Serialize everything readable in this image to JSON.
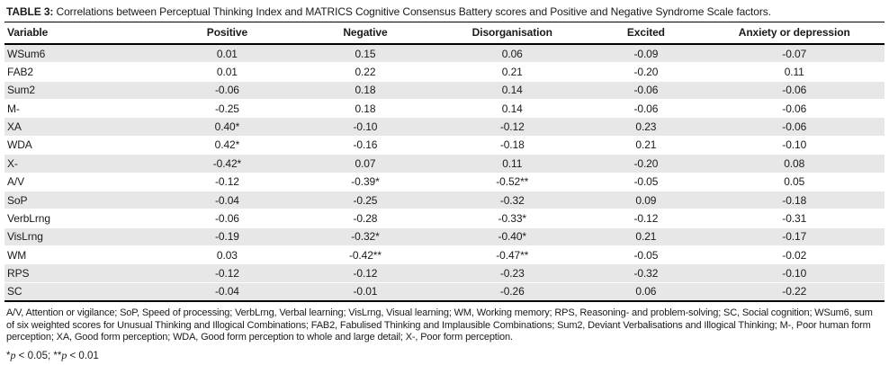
{
  "title": {
    "label": "TABLE 3:",
    "text": "Correlations between Perceptual Thinking Index and MATRICS Cognitive Consensus Battery scores and Positive and Negative Syndrome Scale factors."
  },
  "table": {
    "columns": [
      "Variable",
      "Positive",
      "Negative",
      "Disorganisation",
      "Excited",
      "Anxiety or depression"
    ],
    "rows": [
      {
        "variable": "WSum6",
        "values": [
          "0.01",
          "0.15",
          "0.06",
          "-0.09",
          "-0.07"
        ]
      },
      {
        "variable": "FAB2",
        "values": [
          "0.01",
          "0.22",
          "0.21",
          "-0.20",
          "0.11"
        ]
      },
      {
        "variable": "Sum2",
        "values": [
          "-0.06",
          "0.18",
          "0.14",
          "-0.06",
          "-0.06"
        ]
      },
      {
        "variable": "M-",
        "values": [
          "-0.25",
          "0.18",
          "0.14",
          "-0.06",
          "-0.06"
        ]
      },
      {
        "variable": "XA",
        "values": [
          "0.40*",
          "-0.10",
          "-0.12",
          "0.23",
          "-0.06"
        ]
      },
      {
        "variable": "WDA",
        "values": [
          "0.42*",
          "-0.16",
          "-0.18",
          "0.21",
          "-0.10"
        ]
      },
      {
        "variable": "X-",
        "values": [
          "-0.42*",
          "0.07",
          "0.11",
          "-0.20",
          "0.08"
        ]
      },
      {
        "variable": "A/V",
        "values": [
          "-0.12",
          "-0.39*",
          "-0.52**",
          "-0.05",
          "0.05"
        ]
      },
      {
        "variable": "SoP",
        "values": [
          "-0.04",
          "-0.25",
          "-0.32",
          "0.09",
          "-0.18"
        ]
      },
      {
        "variable": "VerbLrng",
        "values": [
          "-0.06",
          "-0.28",
          "-0.33*",
          "-0.12",
          "-0.31"
        ]
      },
      {
        "variable": "VisLrng",
        "values": [
          "-0.19",
          "-0.32*",
          "-0.40*",
          "0.21",
          "-0.17"
        ]
      },
      {
        "variable": "WM",
        "values": [
          "0.03",
          "-0.42**",
          "-0.47**",
          "-0.05",
          "-0.02"
        ]
      },
      {
        "variable": "RPS",
        "values": [
          "-0.12",
          "-0.12",
          "-0.23",
          "-0.32",
          "-0.10"
        ]
      },
      {
        "variable": "SC",
        "values": [
          "-0.04",
          "-0.01",
          "-0.26",
          "0.06",
          "-0.22"
        ]
      }
    ]
  },
  "footnote": "A/V, Attention or vigilance; SoP, Speed of processing; VerbLrng, Verbal learning; VisLrng, Visual learning; WM, Working memory; RPS, Reasoning- and problem-solving; SC, Social cognition; WSum6, sum of six weighted scores for Unusual Thinking and Illogical Combinations; FAB2, Fabulised Thinking and Implausible Combinations; Sum2, Deviant Verbalisations and Illogical Thinking; M-, Poor human form perception; XA, Good form perception; WDA, Good form perception to whole and large detail; X-, Poor form perception.",
  "significance": {
    "segments": [
      {
        "text": "*",
        "italic": false
      },
      {
        "text": "p",
        "italic": true
      },
      {
        "text": " < 0.05; ",
        "italic": false
      },
      {
        "text": "**",
        "italic": false
      },
      {
        "text": "p",
        "italic": true
      },
      {
        "text": " < 0.01",
        "italic": false
      }
    ]
  },
  "colors": {
    "row_shade": "#e7e7e7",
    "rule": "#000000",
    "text": "#1a1a1a"
  }
}
